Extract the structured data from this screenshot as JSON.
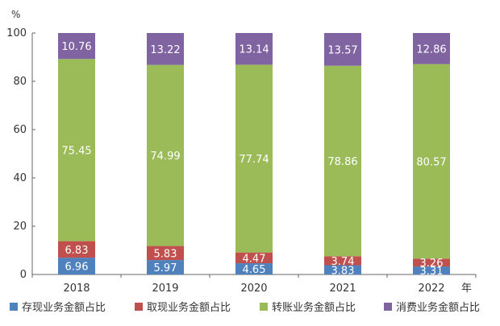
{
  "chart_data": {
    "type": "bar",
    "stacked": true,
    "categories": [
      "2018",
      "2019",
      "2020",
      "2021",
      "2022"
    ],
    "xunit": "年",
    "yunit": "%",
    "ylim": [
      0,
      100
    ],
    "yticks": [
      "0",
      "20",
      "40",
      "60",
      "80",
      "100"
    ],
    "grid": false,
    "legend_position": "bottom",
    "series": [
      {
        "name": "存现业务金额占比",
        "color": "#4f81bd",
        "values": [
          6.96,
          5.97,
          4.65,
          3.83,
          3.31
        ],
        "labels": [
          "6.96",
          "5.97",
          "4.65",
          "3.83",
          "3.31"
        ]
      },
      {
        "name": "取现业务金额占比",
        "color": "#c0504d",
        "values": [
          6.83,
          5.83,
          4.47,
          3.74,
          3.26
        ],
        "labels": [
          "6.83",
          "5.83",
          "4.47",
          "3.74",
          "3.26"
        ]
      },
      {
        "name": "转账业务金额占比",
        "color": "#9bbb59",
        "values": [
          75.45,
          74.99,
          77.74,
          78.86,
          80.57
        ],
        "labels": [
          "75.45",
          "74.99",
          "77.74",
          "78.86",
          "80.57"
        ]
      },
      {
        "name": "消费业务金额占比",
        "color": "#8064a2",
        "values": [
          10.76,
          13.22,
          13.14,
          13.57,
          12.86
        ],
        "labels": [
          "10.76",
          "13.22",
          "13.14",
          "13.57",
          "12.86"
        ]
      }
    ]
  }
}
